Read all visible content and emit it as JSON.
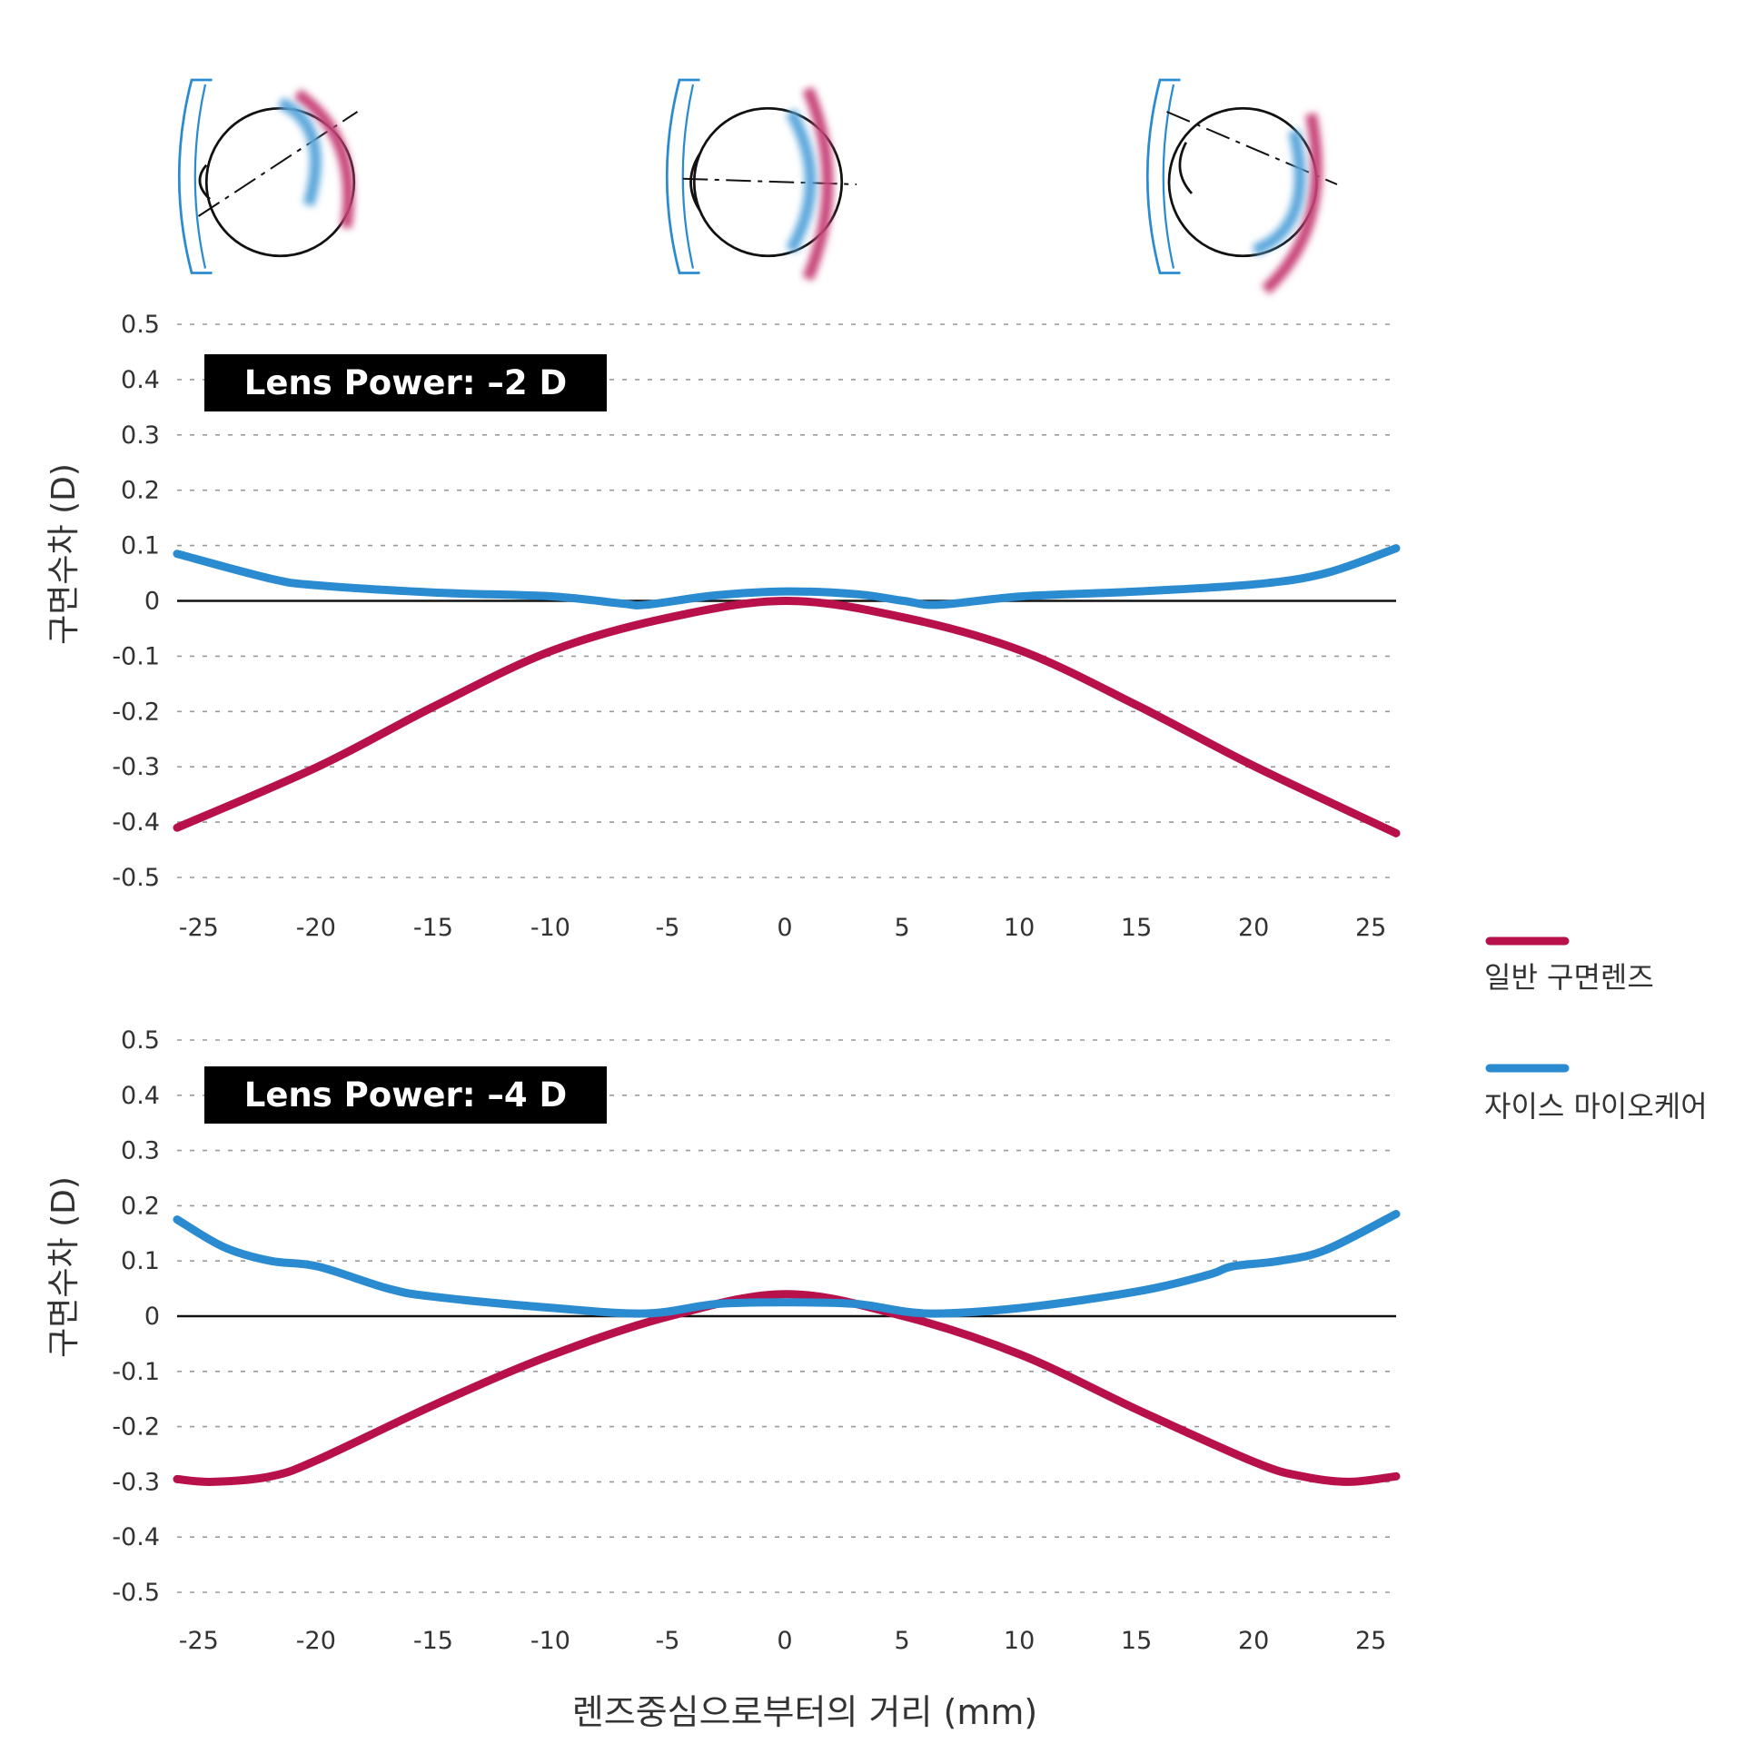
{
  "colors": {
    "standard": "#b8104a",
    "myocare": "#2a8bd1",
    "title_bg": "#000000"
  },
  "x_axis_label": "렌즈중심으로부터의 거리 (mm)",
  "legend": [
    {
      "label": "일반 구면렌즈",
      "color": "#b8104a"
    },
    {
      "label": "자이스 마이오케어",
      "color": "#2a8bd1"
    }
  ],
  "chart_data": [
    {
      "type": "line",
      "title": "Lens Power: –2 D",
      "ylabel": "구면수차 (D)",
      "xlim": [
        -26,
        26
      ],
      "ylim": [
        -0.5,
        0.5
      ],
      "yticks": [
        "0.5",
        "0.4",
        "0.3",
        "0.2",
        "0.1",
        "0",
        "-0.1",
        "-0.2",
        "-0.3",
        "-0.4",
        "-0.5"
      ],
      "xticks": [
        "-25",
        "-20",
        "-15",
        "-10",
        "-5",
        "0",
        "5",
        "10",
        "15",
        "20",
        "25"
      ],
      "grid": true,
      "series": [
        {
          "name": "일반 구면렌즈",
          "x": [
            -26,
            -20,
            -15,
            -10,
            -5,
            0,
            5,
            10,
            15,
            20,
            26
          ],
          "y": [
            -0.41,
            -0.3,
            -0.19,
            -0.09,
            -0.03,
            0.0,
            -0.03,
            -0.09,
            -0.19,
            -0.3,
            -0.42
          ]
        },
        {
          "name": "자이스 마이오케어",
          "x": [
            -26,
            -22,
            -20,
            -15,
            -10,
            -7,
            -6,
            -3,
            0,
            3,
            5,
            6.5,
            10,
            15,
            20,
            23,
            26
          ],
          "y": [
            0.085,
            0.04,
            0.028,
            0.015,
            0.008,
            -0.005,
            -0.007,
            0.01,
            0.017,
            0.012,
            0.0,
            -0.007,
            0.008,
            0.017,
            0.03,
            0.05,
            0.095
          ]
        }
      ]
    },
    {
      "type": "line",
      "title": "Lens Power: –4 D",
      "ylabel": "구면수차 (D)",
      "xlim": [
        -26,
        26
      ],
      "ylim": [
        -0.5,
        0.5
      ],
      "yticks": [
        "0.5",
        "0.4",
        "0.3",
        "0.2",
        "0.1",
        "0",
        "-0.1",
        "-0.2",
        "-0.3",
        "-0.4",
        "-0.5"
      ],
      "xticks": [
        "-25",
        "-20",
        "-15",
        "-10",
        "-5",
        "0",
        "5",
        "10",
        "15",
        "20",
        "25"
      ],
      "grid": true,
      "series": [
        {
          "name": "일반 구면렌즈",
          "x": [
            -26,
            -24.5,
            -22,
            -20,
            -15,
            -10,
            -5,
            0,
            5,
            10,
            15,
            20,
            22,
            24,
            26
          ],
          "y": [
            -0.295,
            -0.3,
            -0.29,
            -0.26,
            -0.16,
            -0.07,
            0.0,
            0.04,
            0.0,
            -0.07,
            -0.17,
            -0.265,
            -0.29,
            -0.3,
            -0.29
          ]
        },
        {
          "name": "자이스 마이오케어",
          "x": [
            -26,
            -24,
            -22,
            -20,
            -17,
            -15,
            -10,
            -6,
            -3,
            0,
            3,
            6,
            10,
            15,
            18,
            19,
            21,
            23,
            26
          ],
          "y": [
            0.175,
            0.125,
            0.1,
            0.09,
            0.05,
            0.035,
            0.015,
            0.005,
            0.022,
            0.025,
            0.022,
            0.005,
            0.015,
            0.045,
            0.075,
            0.09,
            0.1,
            0.12,
            0.185
          ]
        }
      ]
    }
  ]
}
